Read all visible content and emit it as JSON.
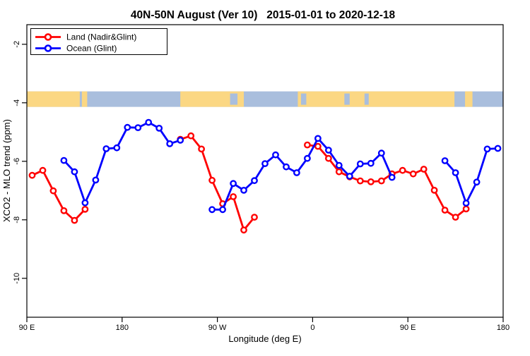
{
  "chart_data": {
    "type": "line",
    "title": "40N-50N August (Ver 10)   2015-01-01 to 2020-12-18",
    "xlabel": "Longitude (deg E)",
    "ylabel": "XCO2 - MLO trend (ppm)",
    "xlim": [
      90,
      540
    ],
    "ylim": [
      -11.33,
      -1.33
    ],
    "grid": false,
    "x_ticks": [
      {
        "value": 90,
        "label": "90 E"
      },
      {
        "value": 180,
        "label": "180"
      },
      {
        "value": 270,
        "label": "90 W"
      },
      {
        "value": 360,
        "label": "0"
      },
      {
        "value": 450,
        "label": "90 E"
      },
      {
        "value": 540,
        "label": "180"
      }
    ],
    "y_ticks": [
      {
        "value": -2,
        "label": "-2"
      },
      {
        "value": -4,
        "label": "-4"
      },
      {
        "value": -6,
        "label": "-6"
      },
      {
        "value": -8,
        "label": "-8"
      },
      {
        "value": -10,
        "label": "-10"
      }
    ],
    "legend": {
      "position": "top-left",
      "items": [
        {
          "name": "Land (Nadir&Glint)",
          "color": "#ff0000"
        },
        {
          "name": "Ocean (Glint)",
          "color": "#0000ff"
        }
      ]
    },
    "map_strip": {
      "y_range": [
        -4.14,
        -3.61
      ],
      "ocean_color": "#a9bedd",
      "land_color": "#fbd783",
      "land_segments": [
        [
          90,
          140
        ],
        [
          142,
          147
        ],
        [
          235,
          295
        ],
        [
          346,
          494
        ],
        [
          504,
          511
        ]
      ],
      "water_patches": [
        [
          282,
          289
        ],
        [
          349,
          354
        ],
        [
          390,
          395
        ],
        [
          409,
          413
        ]
      ]
    },
    "series": [
      {
        "name": "Land (Nadir&Glint)",
        "color": "#ff0000",
        "segments": [
          [
            [
              95,
              -6.48
            ],
            [
              105,
              -6.31
            ],
            [
              115,
              -7.01
            ],
            [
              125,
              -7.69
            ],
            [
              135,
              -8.02
            ],
            [
              145,
              -7.64
            ]
          ],
          [
            [
              235,
              -5.25
            ],
            [
              245,
              -5.13
            ],
            [
              255,
              -5.58
            ],
            [
              265,
              -6.65
            ],
            [
              275,
              -7.45
            ],
            [
              285,
              -7.21
            ],
            [
              295,
              -8.35
            ],
            [
              305,
              -7.91
            ]
          ],
          [
            [
              355,
              -5.44
            ],
            [
              365,
              -5.49
            ],
            [
              375,
              -5.9
            ],
            [
              385,
              -6.36
            ],
            [
              395,
              -6.53
            ],
            [
              405,
              -6.67
            ],
            [
              415,
              -6.7
            ],
            [
              425,
              -6.67
            ],
            [
              435,
              -6.43
            ],
            [
              445,
              -6.31
            ],
            [
              455,
              -6.43
            ],
            [
              465,
              -6.27
            ],
            [
              475,
              -6.99
            ],
            [
              485,
              -7.67
            ],
            [
              495,
              -7.91
            ],
            [
              505,
              -7.63
            ]
          ]
        ]
      },
      {
        "name": "Ocean (Glint)",
        "color": "#0000ff",
        "segments": [
          [
            [
              125,
              -5.97
            ],
            [
              135,
              -6.36
            ],
            [
              145,
              -7.42
            ],
            [
              155,
              -6.64
            ],
            [
              165,
              -5.57
            ],
            [
              175,
              -5.54
            ],
            [
              185,
              -4.84
            ],
            [
              195,
              -4.85
            ],
            [
              205,
              -4.67
            ],
            [
              215,
              -4.87
            ],
            [
              225,
              -5.4
            ],
            [
              235,
              -5.28
            ]
          ],
          [
            [
              265,
              -7.65
            ],
            [
              275,
              -7.65
            ],
            [
              285,
              -6.76
            ],
            [
              295,
              -6.99
            ],
            [
              305,
              -6.66
            ],
            [
              315,
              -6.08
            ],
            [
              325,
              -5.78
            ],
            [
              335,
              -6.19
            ],
            [
              345,
              -6.39
            ],
            [
              355,
              -5.9
            ],
            [
              365,
              -5.22
            ],
            [
              375,
              -5.62
            ],
            [
              385,
              -6.14
            ],
            [
              395,
              -6.51
            ],
            [
              405,
              -6.09
            ],
            [
              415,
              -6.07
            ],
            [
              425,
              -5.72
            ],
            [
              435,
              -6.55
            ]
          ],
          [
            [
              485,
              -5.98
            ],
            [
              495,
              -6.39
            ],
            [
              505,
              -7.43
            ],
            [
              515,
              -6.71
            ],
            [
              525,
              -5.58
            ],
            [
              535,
              -5.56
            ]
          ]
        ]
      }
    ]
  }
}
